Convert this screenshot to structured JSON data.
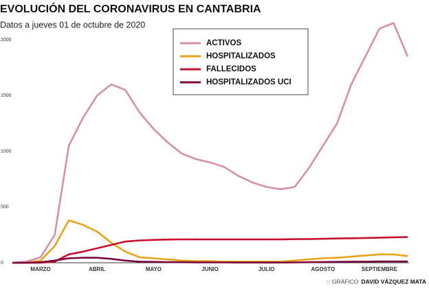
{
  "chart_data": {
    "type": "line",
    "title": "EVOLUCIÓN DEL CORONAVIRUS EN CANTABRIA",
    "subtitle": "Datos a jueves 01 de octubre de 2020",
    "credit_label": ":: GRÁFICO",
    "credit_name": "DAVID VÁZQUEZ MATA",
    "categories": [
      null,
      null,
      "MARZO",
      null,
      null,
      null,
      "ABRIL",
      null,
      null,
      null,
      "MAYO",
      null,
      null,
      null,
      "JUNIO",
      null,
      null,
      null,
      "JULIO",
      null,
      null,
      null,
      "AGOSTO",
      null,
      null,
      null,
      "SEPTIEMBRE",
      null,
      null
    ],
    "series": [
      {
        "name": "ACTIVOS",
        "color": "#d68fab",
        "values": [
          0,
          10,
          50,
          250,
          1050,
          1300,
          1500,
          1600,
          1550,
          1350,
          1200,
          1080,
          980,
          930,
          900,
          860,
          780,
          720,
          680,
          660,
          680,
          850,
          1050,
          1250,
          1600,
          1850,
          2100,
          2150,
          1850
        ]
      },
      {
        "name": "HOSPITALIZADOS",
        "color": "#e8a317",
        "values": [
          0,
          0,
          20,
          150,
          380,
          340,
          280,
          180,
          100,
          50,
          40,
          30,
          20,
          15,
          15,
          10,
          10,
          10,
          10,
          10,
          20,
          30,
          40,
          45,
          55,
          65,
          75,
          75,
          60
        ]
      },
      {
        "name": "FALLECIDOS",
        "color": "#c8102e",
        "values": [
          0,
          0,
          0,
          10,
          75,
          100,
          130,
          160,
          190,
          200,
          205,
          208,
          210,
          210,
          210,
          210,
          210,
          210,
          210,
          210,
          212,
          213,
          215,
          218,
          220,
          222,
          225,
          228,
          230
        ]
      },
      {
        "name": "HOSPITALIZADOS UCI",
        "color": "#7a0a3c",
        "values": [
          0,
          0,
          5,
          20,
          40,
          45,
          45,
          35,
          20,
          10,
          8,
          6,
          5,
          4,
          3,
          3,
          2,
          2,
          2,
          2,
          3,
          5,
          7,
          8,
          10,
          10,
          12,
          12,
          12
        ]
      }
    ],
    "ylim": [
      0,
      2000
    ],
    "yticks": [
      0,
      500,
      1000,
      1500,
      2000
    ]
  }
}
